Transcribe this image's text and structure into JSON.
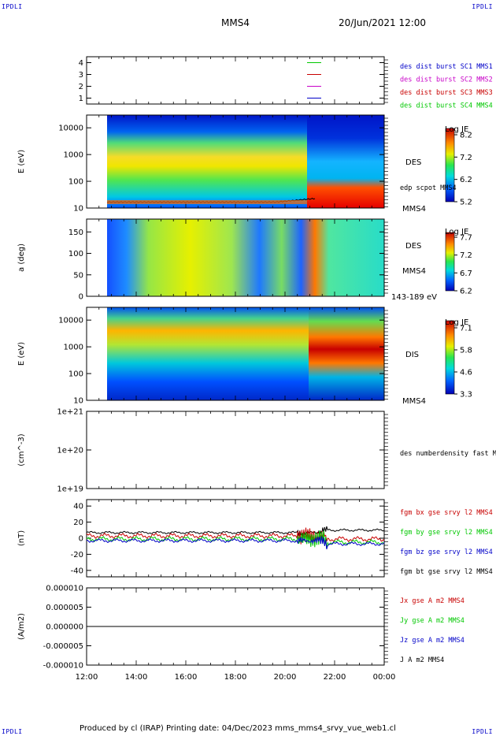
{
  "corners": {
    "tl": "IPDLI",
    "tr": "IPDLI",
    "bl": "IPDLI",
    "br": "IPDLI"
  },
  "header": {
    "spacecraft": "MMS4",
    "datetime": "20/Jun/2021 12:00"
  },
  "footer": {
    "text": "Produced by cl (IRAP)   Printing date: 04/Dec/2023   mms_mms4_srvy_vue_web1.cl"
  },
  "time_axis": {
    "ticks": [
      "12:00",
      "14:00",
      "16:00",
      "18:00",
      "20:00",
      "22:00",
      "00:00"
    ],
    "range_hours": [
      12,
      24
    ]
  },
  "chart_data": [
    {
      "type": "line",
      "id": "availability",
      "ylim": [
        0.5,
        4.5
      ],
      "yticks": [
        "1",
        "2",
        "3",
        "4"
      ],
      "legend": [
        {
          "label": "des dist burst SC1 MMS1",
          "color": "#0000c8"
        },
        {
          "label": "des dist burst SC2 MMS2",
          "color": "#c800c8"
        },
        {
          "label": "des dist burst SC3 MMS3",
          "color": "#c80000"
        },
        {
          "label": "des dist burst SC4 MMS4",
          "color": "#00c800"
        }
      ]
    },
    {
      "type": "heatmap",
      "id": "des_energy",
      "ylabel": "E (eV)",
      "log": true,
      "ylim": [
        10,
        30000
      ],
      "yticks": [
        "10",
        "100",
        "1000",
        "10000"
      ],
      "title_right": "DES",
      "subtitle_right": "MMS4",
      "overlay_label": "edp scpot MMS4",
      "colorbar": {
        "title": "Log JE",
        "ticks": [
          "8.2",
          "7.2",
          "6.2",
          "5.2"
        ]
      }
    },
    {
      "type": "heatmap",
      "id": "des_pitch",
      "ylabel": "a (deg)",
      "ylim": [
        0,
        180
      ],
      "yticks": [
        "0",
        "50",
        "100",
        "150"
      ],
      "title_right": "DES",
      "subtitle_right": "MMS4",
      "energy_label": "143-189 eV",
      "colorbar": {
        "title": "Log JE",
        "ticks": [
          "7.7",
          "7.2",
          "6.7",
          "6.2"
        ]
      }
    },
    {
      "type": "heatmap",
      "id": "dis_energy",
      "ylabel": "E (eV)",
      "log": true,
      "ylim": [
        10,
        30000
      ],
      "yticks": [
        "10",
        "100",
        "1000",
        "10000"
      ],
      "title_right": "DIS",
      "subtitle_right": "MMS4",
      "colorbar": {
        "title": "Log JE",
        "ticks": [
          "7.1",
          "5.8",
          "4.6",
          "3.3"
        ]
      }
    },
    {
      "type": "line",
      "id": "density",
      "ylabel": "(cm^-3)",
      "log": true,
      "ylim": [
        1e+19,
        1e+21
      ],
      "yticks": [
        "1e+19",
        "1e+20",
        "1e+21"
      ],
      "legend": [
        {
          "label": "des numberdensity fast M",
          "color": "#000000"
        }
      ]
    },
    {
      "type": "line",
      "id": "fgm",
      "ylabel": "(nT)",
      "ylim": [
        -48,
        48
      ],
      "yticks": [
        "-40",
        "-20",
        "0",
        "20",
        "40"
      ],
      "legend": [
        {
          "label": "fgm bx gse srvy l2 MMS4",
          "color": "#c80000"
        },
        {
          "label": "fgm by gse srvy l2 MMS4",
          "color": "#00c800"
        },
        {
          "label": "fgm bz gse srvy l2 MMS4",
          "color": "#0000c8"
        },
        {
          "label": "fgm bt gse srvy l2 MMS4",
          "color": "#000000"
        }
      ]
    },
    {
      "type": "line",
      "id": "current",
      "ylabel": "(A/m2)",
      "ylim": [
        -1e-05,
        1e-05
      ],
      "yticks": [
        "-0.000010",
        "-0.000005",
        "0.000000",
        "0.000005",
        "0.000010"
      ],
      "legend": [
        {
          "label": "Jx gse A m2 MMS4",
          "color": "#c80000"
        },
        {
          "label": "Jy gse A m2 MMS4",
          "color": "#00c800"
        },
        {
          "label": "Jz gse A m2 MMS4",
          "color": "#0000c8"
        },
        {
          "label": "J A m2 MMS4",
          "color": "#000000"
        }
      ]
    }
  ]
}
